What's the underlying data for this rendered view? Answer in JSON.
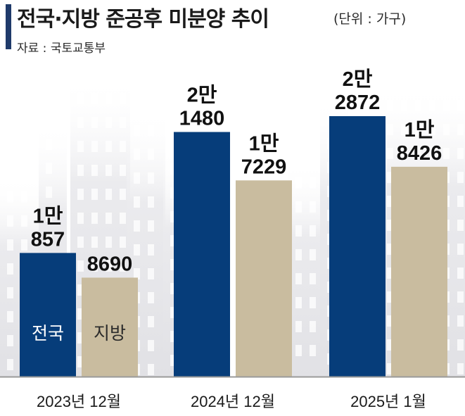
{
  "header": {
    "title": "전국·지방 준공후 미분양 추이",
    "unit": "(단위 : 가구)",
    "source": "자료 : 국토교통부",
    "accent_color": "#1f3a6a"
  },
  "chart_data": {
    "type": "bar",
    "categories": [
      "2023년 12월",
      "2024년 12월",
      "2025년 1월"
    ],
    "series": [
      {
        "name": "전국",
        "values": [
          10857,
          21480,
          22872
        ],
        "labels": [
          [
            "1만",
            "857"
          ],
          [
            "2만",
            "1480"
          ],
          [
            "2만",
            "2872"
          ]
        ],
        "color": "#063d7a"
      },
      {
        "name": "지방",
        "values": [
          8690,
          17229,
          18426
        ],
        "labels": [
          [
            "8690"
          ],
          [
            "1만",
            "7229"
          ],
          [
            "1만",
            "8426"
          ]
        ],
        "color": "#c9bc9f"
      }
    ],
    "title": "전국·지방 준공후 미분양 추이",
    "xlabel": "",
    "ylabel": "",
    "ylim": [
      0,
      22872
    ],
    "grid": false,
    "legend": "inside-bars"
  }
}
